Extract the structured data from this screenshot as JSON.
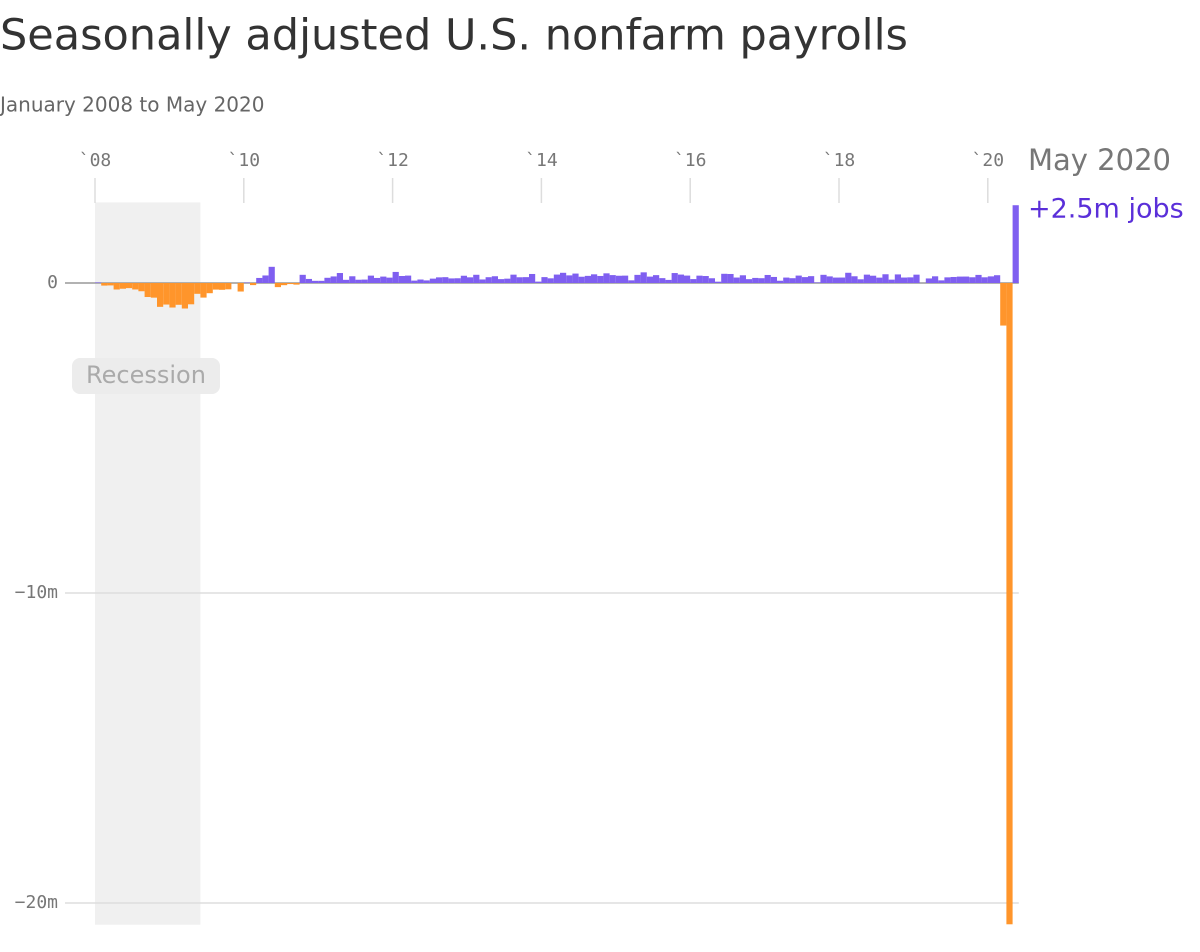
{
  "chart_data": {
    "type": "bar",
    "title": "Seasonally adjusted U.S. nonfarm payrolls",
    "subtitle": "January 2008 to May 2020",
    "categories": [
      null,
      null,
      null,
      null,
      null,
      null,
      null,
      null,
      null,
      null,
      null,
      null,
      null,
      null,
      null,
      null,
      null,
      null,
      null,
      null,
      null,
      null,
      null,
      null,
      null,
      null,
      null,
      null,
      null,
      null,
      null,
      null,
      null,
      null,
      null,
      null,
      null,
      null,
      null,
      null,
      null,
      null,
      null,
      null,
      null,
      null,
      null,
      null,
      null,
      null,
      null,
      null,
      null,
      null,
      null,
      null,
      null,
      null,
      null,
      null,
      null,
      null,
      null,
      null,
      null,
      null,
      null,
      null,
      null,
      null,
      null,
      null,
      null,
      null,
      null,
      null,
      null,
      null,
      null,
      null,
      null,
      null,
      null,
      null,
      null,
      null,
      null,
      null,
      null,
      null,
      null,
      null,
      null,
      null,
      null,
      null,
      null,
      null,
      null,
      null,
      null,
      null,
      null,
      null,
      null,
      null,
      null,
      null,
      null,
      null,
      null,
      null,
      null,
      null,
      null,
      null,
      null,
      null,
      null,
      null,
      null,
      null,
      null,
      null,
      null,
      null,
      null,
      null,
      null,
      null,
      null,
      null,
      null,
      null,
      null,
      null,
      null,
      null,
      null,
      null,
      null,
      null,
      null,
      null,
      null,
      null,
      null,
      null,
      null
    ],
    "values": [
      0.017,
      -0.084,
      -0.078,
      -0.21,
      -0.185,
      -0.165,
      -0.209,
      -0.266,
      -0.452,
      -0.473,
      -0.769,
      -0.695,
      -0.791,
      -0.703,
      -0.823,
      -0.687,
      -0.349,
      -0.471,
      -0.329,
      -0.213,
      -0.22,
      -0.204,
      -0.002,
      -0.275,
      0.014,
      -0.068,
      0.163,
      0.243,
      0.522,
      -0.133,
      -0.07,
      -0.034,
      -0.052,
      0.264,
      0.131,
      0.07,
      0.07,
      0.168,
      0.212,
      0.322,
      0.102,
      0.217,
      0.105,
      0.11,
      0.238,
      0.163,
      0.207,
      0.173,
      0.357,
      0.226,
      0.239,
      0.077,
      0.112,
      0.084,
      0.141,
      0.182,
      0.188,
      0.148,
      0.153,
      0.234,
      0.183,
      0.265,
      0.114,
      0.187,
      0.218,
      0.125,
      0.14,
      0.269,
      0.185,
      0.189,
      0.291,
      0.045,
      0.19,
      0.151,
      0.272,
      0.329,
      0.246,
      0.304,
      0.202,
      0.23,
      0.28,
      0.227,
      0.312,
      0.255,
      0.234,
      0.238,
      0.086,
      0.262,
      0.344,
      0.206,
      0.254,
      0.157,
      0.1,
      0.321,
      0.272,
      0.239,
      0.126,
      0.237,
      0.225,
      0.153,
      0.043,
      0.297,
      0.291,
      0.176,
      0.249,
      0.124,
      0.164,
      0.155,
      0.259,
      0.195,
      0.073,
      0.175,
      0.155,
      0.239,
      0.19,
      0.221,
      0.018,
      0.264,
      0.213,
      0.175,
      0.176,
      0.33,
      0.217,
      0.119,
      0.27,
      0.235,
      0.173,
      0.282,
      0.108,
      0.277,
      0.176,
      0.182,
      0.269,
      0.001,
      0.147,
      0.216,
      0.085,
      0.182,
      0.194,
      0.207,
      0.208,
      0.185,
      0.261,
      0.184,
      0.214,
      0.251,
      -1.373,
      -20.687,
      2.509
    ],
    "positive_color": "#7f5ff0",
    "negative_color": "#ff952b",
    "ylim": [
      -20.7,
      2.6
    ],
    "yticks": [
      {
        "value": -20,
        "label": "−20m"
      },
      {
        "value": -10,
        "label": "−10m"
      },
      0
    ],
    "xticks": [
      {
        "value": 0,
        "label": "`08"
      },
      {
        "value": 24,
        "label": "`10"
      },
      {
        "value": 48,
        "label": "`12"
      },
      {
        "value": 72,
        "label": "`14"
      },
      {
        "value": 96,
        "label": "`16"
      },
      {
        "value": 120,
        "label": "`18"
      },
      {
        "value": 144,
        "label": "`20"
      }
    ],
    "grid": true,
    "shade": {
      "label": "Recession",
      "from": 0,
      "to": 17
    },
    "annotation": {
      "title": "May 2020",
      "text": "+2.5m jobs"
    }
  }
}
